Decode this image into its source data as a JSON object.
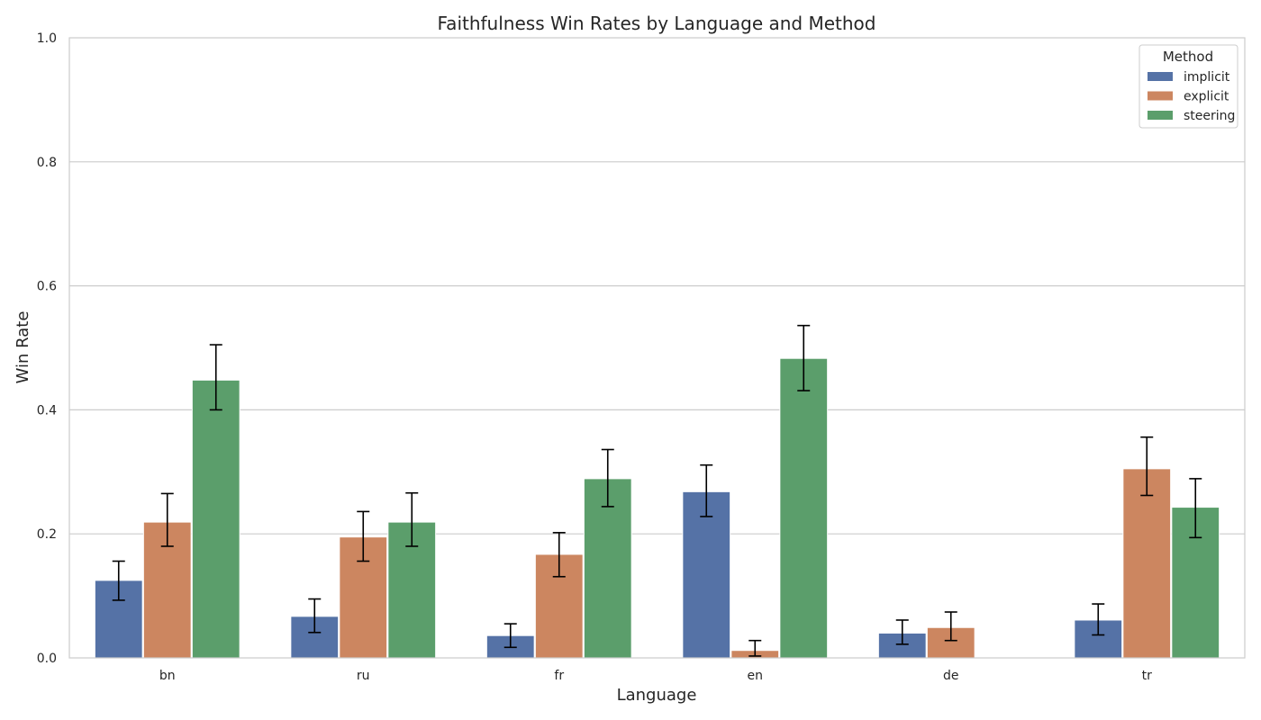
{
  "chart_data": {
    "type": "bar",
    "title": "Faithfulness Win Rates by Language and Method",
    "xlabel": "Language",
    "ylabel": "Win Rate",
    "ylim": [
      0,
      1.0
    ],
    "yticks": [
      "0.0",
      "0.2",
      "0.4",
      "0.6",
      "0.8",
      "1.0"
    ],
    "grid": "horizontal",
    "legend": {
      "title": "Method",
      "placement": "top-right"
    },
    "categories": [
      "bn",
      "ru",
      "fr",
      "en",
      "de",
      "tr"
    ],
    "series": [
      {
        "name": "implicit",
        "color": "#5572a6",
        "values": [
          0.125,
          0.067,
          0.036,
          0.268,
          0.04,
          0.061
        ],
        "err_low": [
          0.093,
          0.041,
          0.017,
          0.228,
          0.022,
          0.037
        ],
        "err_high": [
          0.156,
          0.095,
          0.055,
          0.311,
          0.061,
          0.087
        ]
      },
      {
        "name": "explicit",
        "color": "#cc8660",
        "values": [
          0.219,
          0.195,
          0.167,
          0.012,
          0.049,
          0.305
        ],
        "err_low": [
          0.18,
          0.156,
          0.131,
          0.003,
          0.028,
          0.262
        ],
        "err_high": [
          0.265,
          0.236,
          0.202,
          0.028,
          0.074,
          0.356
        ]
      },
      {
        "name": "steering",
        "color": "#5b9e6b",
        "values": [
          0.448,
          0.219,
          0.289,
          0.483,
          null,
          0.243
        ],
        "err_low": [
          0.4,
          0.18,
          0.244,
          0.431,
          null,
          0.194
        ],
        "err_high": [
          0.505,
          0.266,
          0.336,
          0.536,
          null,
          0.289
        ]
      }
    ]
  }
}
